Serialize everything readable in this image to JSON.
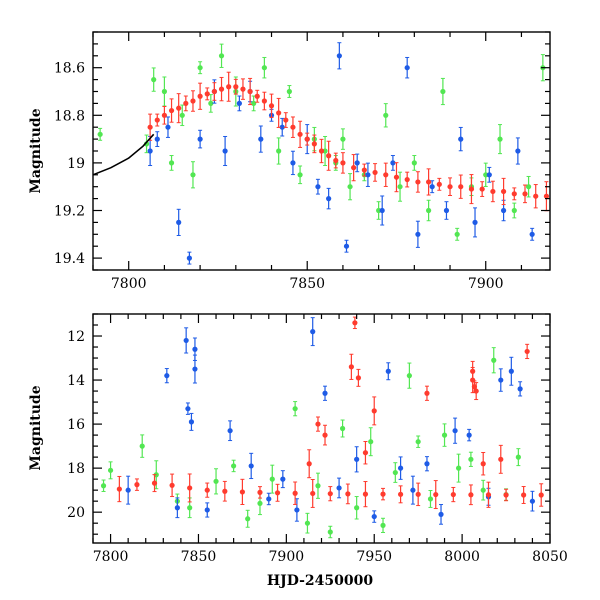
{
  "figure": {
    "type": "light-curve",
    "colors": {
      "blue": "#1e5be6",
      "green": "#52e652",
      "red": "#ff3b2e",
      "model_curve": "#000000"
    }
  },
  "chart_data": [
    {
      "type": "scatter",
      "panel": "top",
      "title": "",
      "xlabel": "",
      "ylabel": "Magnitude",
      "xlim": [
        7790,
        7918
      ],
      "ylim": [
        19.45,
        18.45
      ],
      "y_inverted": true,
      "x_ticks": [
        7800,
        7850,
        7900
      ],
      "y_ticks": [
        18.6,
        18.8,
        19,
        19.2,
        19.4
      ],
      "x_tick_labels": [
        "7800",
        "7850",
        "7900"
      ],
      "y_tick_labels": [
        "18.6",
        "18.8",
        "19",
        "19.2",
        "19.4"
      ],
      "grid": false,
      "legend": "none",
      "series": [
        {
          "color": "green",
          "points": [
            [
              7792,
              18.88
            ],
            [
              7805,
              18.92
            ],
            [
              7807,
              18.65
            ],
            [
              7810,
              18.7
            ],
            [
              7812,
              19.0
            ],
            [
              7815,
              18.8
            ],
            [
              7818,
              19.05
            ],
            [
              7820,
              18.6
            ],
            [
              7823,
              18.75
            ],
            [
              7826,
              18.55
            ],
            [
              7830,
              18.7
            ],
            [
              7835,
              18.75
            ],
            [
              7838,
              18.6
            ],
            [
              7842,
              18.95
            ],
            [
              7845,
              18.7
            ],
            [
              7848,
              19.05
            ],
            [
              7852,
              18.9
            ],
            [
              7855,
              18.95
            ],
            [
              7858,
              19.0
            ],
            [
              7860,
              18.9
            ],
            [
              7862,
              19.1
            ],
            [
              7866,
              19.05
            ],
            [
              7870,
              19.2
            ],
            [
              7872,
              18.8
            ],
            [
              7876,
              19.1
            ],
            [
              7880,
              19.0
            ],
            [
              7884,
              19.2
            ],
            [
              7888,
              18.7
            ],
            [
              7892,
              19.3
            ],
            [
              7896,
              19.1
            ],
            [
              7900,
              19.05
            ],
            [
              7904,
              18.9
            ],
            [
              7908,
              19.2
            ],
            [
              7912,
              19.1
            ],
            [
              7916,
              18.6
            ]
          ]
        },
        {
          "color": "blue",
          "points": [
            [
              7806,
              18.95
            ],
            [
              7808,
              18.9
            ],
            [
              7811,
              18.85
            ],
            [
              7814,
              19.25
            ],
            [
              7817,
              19.4
            ],
            [
              7820,
              18.9
            ],
            [
              7824,
              18.7
            ],
            [
              7827,
              18.95
            ],
            [
              7831,
              18.75
            ],
            [
              7834,
              18.7
            ],
            [
              7837,
              18.9
            ],
            [
              7840,
              18.8
            ],
            [
              7843,
              18.85
            ],
            [
              7846,
              19.0
            ],
            [
              7850,
              18.9
            ],
            [
              7853,
              19.1
            ],
            [
              7856,
              19.15
            ],
            [
              7859,
              18.55
            ],
            [
              7861,
              19.35
            ],
            [
              7864,
              19.0
            ],
            [
              7867,
              19.05
            ],
            [
              7871,
              19.2
            ],
            [
              7874,
              19.0
            ],
            [
              7878,
              18.6
            ],
            [
              7881,
              19.3
            ],
            [
              7885,
              19.1
            ],
            [
              7889,
              19.2
            ],
            [
              7893,
              18.9
            ],
            [
              7897,
              19.25
            ],
            [
              7901,
              19.05
            ],
            [
              7905,
              19.2
            ],
            [
              7909,
              18.95
            ],
            [
              7913,
              19.3
            ]
          ]
        },
        {
          "color": "red",
          "points": [
            [
              7806,
              18.85
            ],
            [
              7808,
              18.82
            ],
            [
              7810,
              18.8
            ],
            [
              7812,
              18.78
            ],
            [
              7814,
              18.77
            ],
            [
              7816,
              18.75
            ],
            [
              7818,
              18.74
            ],
            [
              7820,
              18.72
            ],
            [
              7822,
              18.71
            ],
            [
              7824,
              18.7
            ],
            [
              7826,
              18.69
            ],
            [
              7828,
              18.68
            ],
            [
              7830,
              18.68
            ],
            [
              7832,
              18.69
            ],
            [
              7834,
              18.7
            ],
            [
              7836,
              18.72
            ],
            [
              7838,
              18.74
            ],
            [
              7840,
              18.76
            ],
            [
              7842,
              18.79
            ],
            [
              7844,
              18.82
            ],
            [
              7846,
              18.85
            ],
            [
              7848,
              18.88
            ],
            [
              7850,
              18.9
            ],
            [
              7852,
              18.92
            ],
            [
              7854,
              18.95
            ],
            [
              7856,
              18.97
            ],
            [
              7858,
              18.99
            ],
            [
              7860,
              19.0
            ],
            [
              7863,
              19.02
            ],
            [
              7866,
              19.03
            ],
            [
              7869,
              19.04
            ],
            [
              7872,
              19.05
            ],
            [
              7875,
              19.06
            ],
            [
              7878,
              19.07
            ],
            [
              7881,
              19.08
            ],
            [
              7884,
              19.08
            ],
            [
              7887,
              19.09
            ],
            [
              7890,
              19.1
            ],
            [
              7893,
              19.1
            ],
            [
              7896,
              19.11
            ],
            [
              7899,
              19.11
            ],
            [
              7902,
              19.12
            ],
            [
              7905,
              19.12
            ],
            [
              7908,
              19.13
            ],
            [
              7911,
              19.13
            ],
            [
              7914,
              19.14
            ],
            [
              7917,
              19.14
            ]
          ]
        },
        {
          "color": "model_curve",
          "line": true,
          "points": [
            [
              7790,
              19.05
            ],
            [
              7795,
              19.02
            ],
            [
              7800,
              18.98
            ],
            [
              7804,
              18.93
            ],
            [
              7807,
              18.88
            ]
          ]
        }
      ]
    },
    {
      "type": "scatter",
      "panel": "bottom",
      "title": "",
      "xlabel": "HJD-2450000",
      "ylabel": "Magnitude",
      "xlim": [
        7790,
        8050
      ],
      "ylim": [
        21.4,
        11.0
      ],
      "y_inverted": true,
      "x_ticks": [
        7800,
        7850,
        7900,
        7950,
        8000,
        8050
      ],
      "y_ticks": [
        12,
        14,
        16,
        18,
        20
      ],
      "x_tick_labels": [
        "7800",
        "7850",
        "7900",
        "7950",
        "8000",
        "8050"
      ],
      "y_tick_labels": [
        "12",
        "14",
        "16",
        "18",
        "20"
      ],
      "grid": false,
      "legend": "none",
      "series": [
        {
          "color": "green",
          "points": [
            [
              7796,
              18.8
            ],
            [
              7800,
              18.1
            ],
            [
              7818,
              17.0
            ],
            [
              7826,
              18.3
            ],
            [
              7838,
              19.5
            ],
            [
              7845,
              19.8
            ],
            [
              7860,
              18.6
            ],
            [
              7870,
              17.9
            ],
            [
              7878,
              20.3
            ],
            [
              7885,
              19.6
            ],
            [
              7892,
              18.5
            ],
            [
              7905,
              15.3
            ],
            [
              7912,
              20.5
            ],
            [
              7918,
              18.8
            ],
            [
              7925,
              20.9
            ],
            [
              7932,
              16.2
            ],
            [
              7940,
              19.8
            ],
            [
              7948,
              16.8
            ],
            [
              7955,
              20.6
            ],
            [
              7962,
              18.2
            ],
            [
              7970,
              13.8
            ],
            [
              7975,
              16.8
            ],
            [
              7982,
              19.4
            ],
            [
              7990,
              16.5
            ],
            [
              7998,
              18.0
            ],
            [
              8005,
              17.6
            ],
            [
              8012,
              19.0
            ],
            [
              8018,
              13.1
            ],
            [
              8025,
              19.2
            ],
            [
              8032,
              17.5
            ]
          ]
        },
        {
          "color": "blue",
          "points": [
            [
              7810,
              19.0
            ],
            [
              7832,
              13.8
            ],
            [
              7838,
              19.8
            ],
            [
              7843,
              12.2
            ],
            [
              7844,
              15.3
            ],
            [
              7846,
              15.9
            ],
            [
              7848,
              12.6
            ],
            [
              7848,
              13.5
            ],
            [
              7855,
              19.9
            ],
            [
              7868,
              16.3
            ],
            [
              7880,
              17.9
            ],
            [
              7890,
              19.4
            ],
            [
              7898,
              18.5
            ],
            [
              7906,
              19.9
            ],
            [
              7915,
              11.8
            ],
            [
              7922,
              14.6
            ],
            [
              7930,
              18.9
            ],
            [
              7940,
              17.6
            ],
            [
              7950,
              20.2
            ],
            [
              7958,
              13.6
            ],
            [
              7965,
              18.0
            ],
            [
              7972,
              19.0
            ],
            [
              7980,
              17.8
            ],
            [
              7988,
              20.1
            ],
            [
              7996,
              16.3
            ],
            [
              8004,
              16.5
            ],
            [
              8015,
              19.3
            ],
            [
              8022,
              14.0
            ],
            [
              8028,
              13.6
            ],
            [
              8033,
              14.4
            ],
            [
              8040,
              19.5
            ]
          ]
        },
        {
          "color": "red",
          "points": [
            [
              7805,
              18.95
            ],
            [
              7815,
              18.75
            ],
            [
              7825,
              18.68
            ],
            [
              7835,
              18.78
            ],
            [
              7845,
              18.9
            ],
            [
              7855,
              19.0
            ],
            [
              7865,
              19.05
            ],
            [
              7875,
              19.08
            ],
            [
              7885,
              19.1
            ],
            [
              7895,
              19.12
            ],
            [
              7905,
              19.14
            ],
            [
              7915,
              19.15
            ],
            [
              7925,
              19.16
            ],
            [
              7935,
              19.17
            ],
            [
              7945,
              19.18
            ],
            [
              7955,
              19.18
            ],
            [
              7965,
              19.19
            ],
            [
              7975,
              19.19
            ],
            [
              7985,
              19.2
            ],
            [
              7995,
              19.2
            ],
            [
              8005,
              19.21
            ],
            [
              8015,
              19.21
            ],
            [
              8025,
              19.22
            ],
            [
              8035,
              19.22
            ],
            [
              8045,
              19.22
            ],
            [
              7913,
              17.8
            ],
            [
              7918,
              16.0
            ],
            [
              7922,
              16.5
            ],
            [
              7937,
              13.4
            ],
            [
              7939,
              11.4
            ],
            [
              7941,
              13.9
            ],
            [
              7945,
              17.3
            ],
            [
              7950,
              15.4
            ],
            [
              7980,
              14.6
            ],
            [
              8006,
              13.6
            ],
            [
              8006,
              14.0
            ],
            [
              8007,
              14.3
            ],
            [
              8008,
              14.5
            ],
            [
              8012,
              17.8
            ],
            [
              8022,
              17.6
            ],
            [
              8037,
              12.7
            ]
          ]
        }
      ]
    }
  ]
}
